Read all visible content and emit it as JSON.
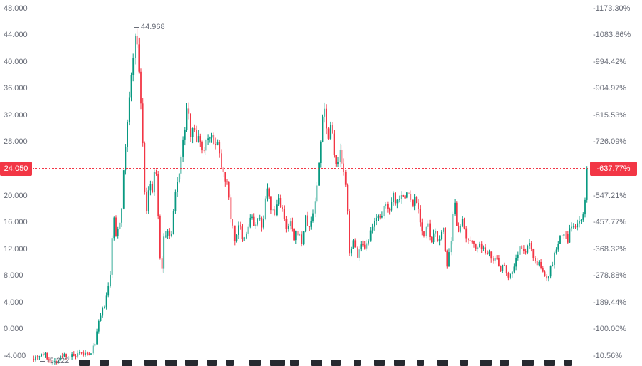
{
  "badges": {
    "price": "24.050",
    "percent": "-637.77%"
  },
  "annotations": {
    "peak": "44.968",
    "low": "-5.222"
  },
  "colors": {
    "up": "#089981",
    "down": "#f23645",
    "accent": "#f23645",
    "axis_text": "#696d78",
    "fragment": "#15181e",
    "background": "#ffffff"
  },
  "chart_data": {
    "type": "candlestick",
    "title": "",
    "current_price": 24.05,
    "current_price_label": "24.050",
    "current_percent_label": "-637.77%",
    "peak": {
      "value": 44.968,
      "label": "44.968"
    },
    "low": {
      "value": -5.222,
      "label": "-5.222"
    },
    "ylim": [
      -5.45,
      49.3
    ],
    "grid": false,
    "y_axis_left": {
      "labels": [
        {
          "text": "48.000",
          "value": 48
        },
        {
          "text": "44.000",
          "value": 44
        },
        {
          "text": "40.000",
          "value": 40
        },
        {
          "text": "36.000",
          "value": 36
        },
        {
          "text": "32.000",
          "value": 32
        },
        {
          "text": "28.000",
          "value": 28
        },
        {
          "text": "20.000",
          "value": 20
        },
        {
          "text": "16.000",
          "value": 16
        },
        {
          "text": "12.000",
          "value": 12
        },
        {
          "text": "8.000",
          "value": 8
        },
        {
          "text": "4.000",
          "value": 4
        },
        {
          "text": "0.000",
          "value": 0
        },
        {
          "text": "-4.000",
          "value": -4
        }
      ]
    },
    "y_axis_right": {
      "labels": [
        {
          "text": "-1173.30%",
          "value": 48
        },
        {
          "text": "-1083.86%",
          "value": 44
        },
        {
          "text": "-994.42%",
          "value": 40
        },
        {
          "text": "-904.97%",
          "value": 36
        },
        {
          "text": "-815.53%",
          "value": 32
        },
        {
          "text": "-726.09%",
          "value": 28
        },
        {
          "text": "-547.21%",
          "value": 20
        },
        {
          "text": "-457.77%",
          "value": 16
        },
        {
          "text": "-368.32%",
          "value": 12
        },
        {
          "text": "-278.88%",
          "value": 8
        },
        {
          "text": "-189.44%",
          "value": 4
        },
        {
          "text": "-100.00%",
          "value": 0
        },
        {
          "text": "-10.56%",
          "value": -4
        }
      ]
    },
    "x_axis": {
      "labels_clipped": true,
      "fragment_count": 24
    },
    "series_keypoints": [
      [
        46,
        -4.2
      ],
      [
        60,
        -3.6
      ],
      [
        75,
        -5.0
      ],
      [
        90,
        -3.8
      ],
      [
        105,
        -4.1
      ],
      [
        118,
        -3.6
      ],
      [
        125,
        -4.0
      ],
      [
        132,
        -2.5
      ],
      [
        140,
        1.5
      ],
      [
        148,
        4.0
      ],
      [
        155,
        8.0
      ],
      [
        157,
        12.0
      ],
      [
        159,
        18.5
      ],
      [
        162,
        13.5
      ],
      [
        166,
        15.5
      ],
      [
        170,
        17.0
      ],
      [
        178,
        30.0
      ],
      [
        185,
        38.0
      ],
      [
        190,
        44.968
      ],
      [
        196,
        38.0
      ],
      [
        200,
        30.0
      ],
      [
        203,
        21.0
      ],
      [
        207,
        17.0
      ],
      [
        210,
        22.5
      ],
      [
        215,
        20.0
      ],
      [
        218,
        25.5
      ],
      [
        222,
        18.0
      ],
      [
        226,
        7.0
      ],
      [
        230,
        13.5
      ],
      [
        235,
        15.0
      ],
      [
        240,
        13.0
      ],
      [
        246,
        20.0
      ],
      [
        252,
        24.0
      ],
      [
        258,
        28.5
      ],
      [
        263,
        33.2
      ],
      [
        268,
        29.5
      ],
      [
        272,
        31.5
      ],
      [
        276,
        27.5
      ],
      [
        280,
        29.8
      ],
      [
        284,
        26.5
      ],
      [
        290,
        28.5
      ],
      [
        295,
        29.5
      ],
      [
        300,
        27.5
      ],
      [
        305,
        28.8
      ],
      [
        310,
        25.0
      ],
      [
        315,
        23.5
      ],
      [
        320,
        21.0
      ],
      [
        325,
        16.5
      ],
      [
        330,
        13.2
      ],
      [
        336,
        16.2
      ],
      [
        341,
        12.8
      ],
      [
        347,
        14.5
      ],
      [
        352,
        17.2
      ],
      [
        358,
        15.2
      ],
      [
        363,
        16.8
      ],
      [
        368,
        14.8
      ],
      [
        374,
        21.3
      ],
      [
        380,
        18.5
      ],
      [
        386,
        17.0
      ],
      [
        391,
        19.8
      ],
      [
        397,
        18.0
      ],
      [
        402,
        14.6
      ],
      [
        408,
        16.0
      ],
      [
        413,
        13.2
      ],
      [
        418,
        14.8
      ],
      [
        424,
        13.0
      ],
      [
        429,
        16.6
      ],
      [
        435,
        15.0
      ],
      [
        440,
        17.5
      ],
      [
        445,
        21.0
      ],
      [
        450,
        27.0
      ],
      [
        455,
        34.8
      ],
      [
        460,
        28.5
      ],
      [
        465,
        31.2
      ],
      [
        470,
        26.5
      ],
      [
        474,
        24.0
      ],
      [
        478,
        26.8
      ],
      [
        483,
        23.2
      ],
      [
        487,
        20.5
      ],
      [
        491,
        11.8
      ],
      [
        497,
        13.0
      ],
      [
        502,
        11.2
      ],
      [
        508,
        12.6
      ],
      [
        513,
        11.6
      ],
      [
        519,
        13.8
      ],
      [
        525,
        15.5
      ],
      [
        530,
        17.8
      ],
      [
        536,
        15.8
      ],
      [
        541,
        19.2
      ],
      [
        546,
        17.5
      ],
      [
        552,
        20.6
      ],
      [
        557,
        18.8
      ],
      [
        563,
        20.8
      ],
      [
        568,
        19.2
      ],
      [
        573,
        21.0
      ],
      [
        579,
        18.4
      ],
      [
        584,
        20.2
      ],
      [
        590,
        17.0
      ],
      [
        595,
        13.6
      ],
      [
        601,
        15.8
      ],
      [
        606,
        12.6
      ],
      [
        612,
        14.8
      ],
      [
        617,
        12.9
      ],
      [
        623,
        15.4
      ],
      [
        628,
        9.2
      ],
      [
        634,
        13.0
      ],
      [
        638,
        19.4
      ],
      [
        643,
        14.8
      ],
      [
        649,
        16.4
      ],
      [
        654,
        13.8
      ],
      [
        660,
        12.6
      ],
      [
        665,
        13.6
      ],
      [
        671,
        11.8
      ],
      [
        676,
        12.8
      ],
      [
        682,
        11.2
      ],
      [
        687,
        12.2
      ],
      [
        693,
        10.2
      ],
      [
        698,
        10.8
      ],
      [
        704,
        9.0
      ],
      [
        709,
        9.8
      ],
      [
        715,
        7.8
      ],
      [
        720,
        8.8
      ],
      [
        726,
        10.8
      ],
      [
        731,
        12.4
      ],
      [
        737,
        11.2
      ],
      [
        742,
        13.0
      ],
      [
        748,
        11.4
      ],
      [
        753,
        10.2
      ],
      [
        759,
        9.4
      ],
      [
        764,
        8.2
      ],
      [
        770,
        7.8
      ],
      [
        775,
        9.6
      ],
      [
        781,
        11.8
      ],
      [
        786,
        13.4
      ],
      [
        792,
        14.6
      ],
      [
        797,
        13.2
      ],
      [
        803,
        15.8
      ],
      [
        808,
        14.6
      ],
      [
        814,
        16.8
      ],
      [
        818,
        15.4
      ],
      [
        822,
        19.5
      ],
      [
        826,
        24.05
      ]
    ]
  }
}
